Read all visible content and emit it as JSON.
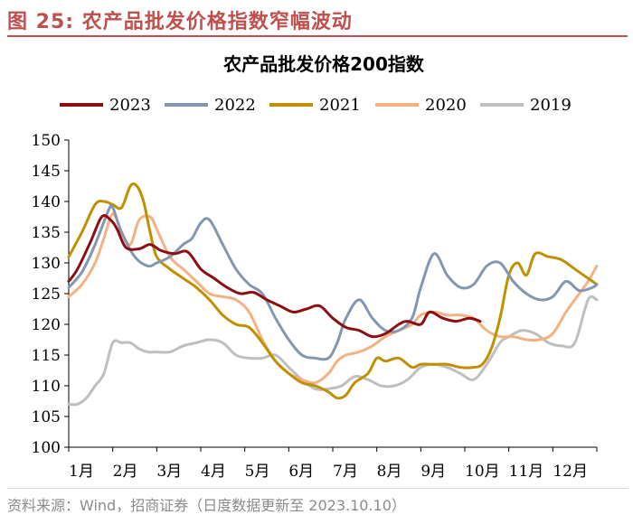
{
  "figure": {
    "title": "图 25:  农产品批发价格指数窄幅波动",
    "source": "资料来源：Wind，招商证券（日度数据更新至 2023.10.10）"
  },
  "chart_data": {
    "type": "line",
    "title": "农产品批发价格200指数",
    "xlabel": "",
    "ylabel": "",
    "ylim": [
      100,
      150
    ],
    "yticks": [
      100,
      105,
      110,
      115,
      120,
      125,
      130,
      135,
      140,
      145,
      150
    ],
    "x_domain": [
      1,
      13
    ],
    "categories": [
      "1月",
      "2月",
      "3月",
      "4月",
      "5月",
      "6月",
      "7月",
      "8月",
      "9月",
      "10月",
      "11月",
      "12月"
    ],
    "legend_position": "top",
    "series": [
      {
        "name": "2023",
        "color": "#8b0f12",
        "x": [
          1.0,
          1.2,
          1.5,
          1.75,
          1.95,
          2.1,
          2.3,
          2.6,
          2.85,
          3.1,
          3.4,
          3.7,
          4.0,
          4.3,
          4.6,
          4.9,
          5.2,
          5.5,
          5.8,
          6.1,
          6.4,
          6.7,
          7.0,
          7.3,
          7.6,
          7.9,
          8.2,
          8.5,
          8.7,
          9.0,
          9.2,
          9.5,
          9.8,
          10.1,
          10.35
        ],
        "values": [
          127,
          129,
          133.5,
          137.5,
          137,
          135.5,
          132.5,
          132.3,
          133,
          132,
          131.5,
          131.8,
          129,
          127.5,
          126,
          125,
          125.2,
          124,
          123,
          122,
          122.5,
          123,
          121,
          119.5,
          119,
          118,
          118.5,
          120,
          120.5,
          120,
          122,
          121,
          120.5,
          121,
          120.5
        ]
      },
      {
        "name": "2022",
        "color": "#8497b0",
        "x": [
          1.0,
          1.3,
          1.6,
          1.9,
          2.0,
          2.2,
          2.5,
          2.8,
          3.0,
          3.3,
          3.6,
          3.8,
          4.0,
          4.2,
          4.5,
          4.8,
          5.1,
          5.4,
          5.7,
          6.0,
          6.3,
          6.6,
          6.9,
          7.1,
          7.3,
          7.6,
          7.9,
          8.2,
          8.5,
          8.8,
          9.0,
          9.3,
          9.6,
          9.9,
          10.2,
          10.5,
          10.8,
          11.1,
          11.4,
          11.7,
          12.0,
          12.3,
          12.6,
          12.9,
          13.0
        ],
        "values": [
          126,
          128.5,
          133,
          138.5,
          139,
          135,
          131,
          129.5,
          130,
          131,
          133,
          134,
          136.5,
          137,
          133,
          129,
          126.5,
          125,
          121,
          117.5,
          115,
          114.5,
          114.5,
          117,
          121,
          124,
          121,
          119,
          119,
          121,
          126,
          131.5,
          128,
          126,
          126.5,
          129.5,
          130,
          127,
          125,
          124,
          124.5,
          127,
          125.5,
          126,
          126.5
        ]
      },
      {
        "name": "2021",
        "color": "#bf9000",
        "x": [
          1.0,
          1.3,
          1.6,
          1.8,
          2.0,
          2.2,
          2.4,
          2.55,
          2.7,
          2.85,
          3.0,
          3.3,
          3.6,
          3.9,
          4.2,
          4.5,
          4.8,
          5.1,
          5.4,
          5.7,
          6.0,
          6.3,
          6.6,
          6.9,
          7.1,
          7.3,
          7.5,
          7.8,
          8.0,
          8.2,
          8.5,
          8.8,
          9.0,
          9.3,
          9.6,
          9.9,
          10.2,
          10.4,
          10.6,
          10.8,
          11.0,
          11.2,
          11.4,
          11.6,
          11.9,
          12.2,
          12.5,
          12.8,
          13.0
        ],
        "values": [
          131,
          135,
          139.5,
          140,
          139.5,
          139,
          142.5,
          142.5,
          140,
          135,
          131,
          129,
          127.5,
          126,
          124,
          121.5,
          120,
          119.5,
          117,
          114,
          112,
          110.5,
          110,
          109,
          108,
          108.5,
          110.5,
          112,
          114.5,
          114,
          114.5,
          113,
          113.5,
          113.5,
          113.5,
          113,
          113,
          113.5,
          116,
          121,
          128,
          130,
          128,
          131.5,
          131,
          130.5,
          129,
          127.5,
          126.5
        ]
      },
      {
        "name": "2020",
        "color": "#f4b183",
        "x": [
          1.0,
          1.3,
          1.6,
          1.8,
          2.0,
          2.2,
          2.4,
          2.6,
          2.85,
          3.0,
          3.3,
          3.6,
          3.9,
          4.2,
          4.5,
          4.8,
          5.1,
          5.4,
          5.7,
          6.0,
          6.3,
          6.6,
          6.9,
          7.1,
          7.3,
          7.6,
          7.9,
          8.2,
          8.5,
          8.8,
          9.0,
          9.3,
          9.6,
          9.9,
          10.2,
          10.5,
          10.8,
          11.1,
          11.4,
          11.7,
          12.0,
          12.3,
          12.6,
          12.8,
          13.0
        ],
        "values": [
          124.5,
          126.5,
          130,
          134,
          138,
          135,
          133,
          137,
          137.5,
          135.5,
          131,
          129,
          127,
          125,
          124.5,
          124,
          122,
          117.5,
          114,
          112,
          111,
          110.5,
          112,
          114,
          115,
          115.5,
          116.5,
          118,
          119,
          120,
          121.5,
          122,
          121.5,
          121.5,
          121,
          119,
          118,
          118,
          117.5,
          117.5,
          118.5,
          122,
          125,
          127,
          129.5
        ]
      },
      {
        "name": "2019",
        "color": "#bfbfbf",
        "x": [
          1.0,
          1.2,
          1.4,
          1.6,
          1.8,
          2.0,
          2.2,
          2.4,
          2.6,
          2.8,
          3.0,
          3.3,
          3.6,
          3.9,
          4.2,
          4.5,
          4.8,
          5.1,
          5.4,
          5.7,
          6.0,
          6.3,
          6.6,
          6.9,
          7.2,
          7.5,
          7.8,
          8.1,
          8.4,
          8.7,
          9.0,
          9.3,
          9.6,
          9.9,
          10.2,
          10.5,
          10.8,
          11.0,
          11.3,
          11.6,
          11.9,
          12.2,
          12.5,
          12.8,
          13.0
        ],
        "values": [
          107,
          107,
          108,
          110,
          112,
          117,
          117,
          117,
          116,
          115.5,
          115.5,
          115.5,
          116.5,
          117,
          117.5,
          117,
          115,
          114.5,
          114.5,
          115,
          113,
          111,
          109.5,
          109.5,
          110,
          111.5,
          111,
          110,
          110,
          111,
          113,
          113.5,
          113,
          112,
          111,
          113.5,
          117,
          118,
          119,
          118.5,
          117,
          116.5,
          117,
          124,
          124
        ]
      }
    ]
  }
}
